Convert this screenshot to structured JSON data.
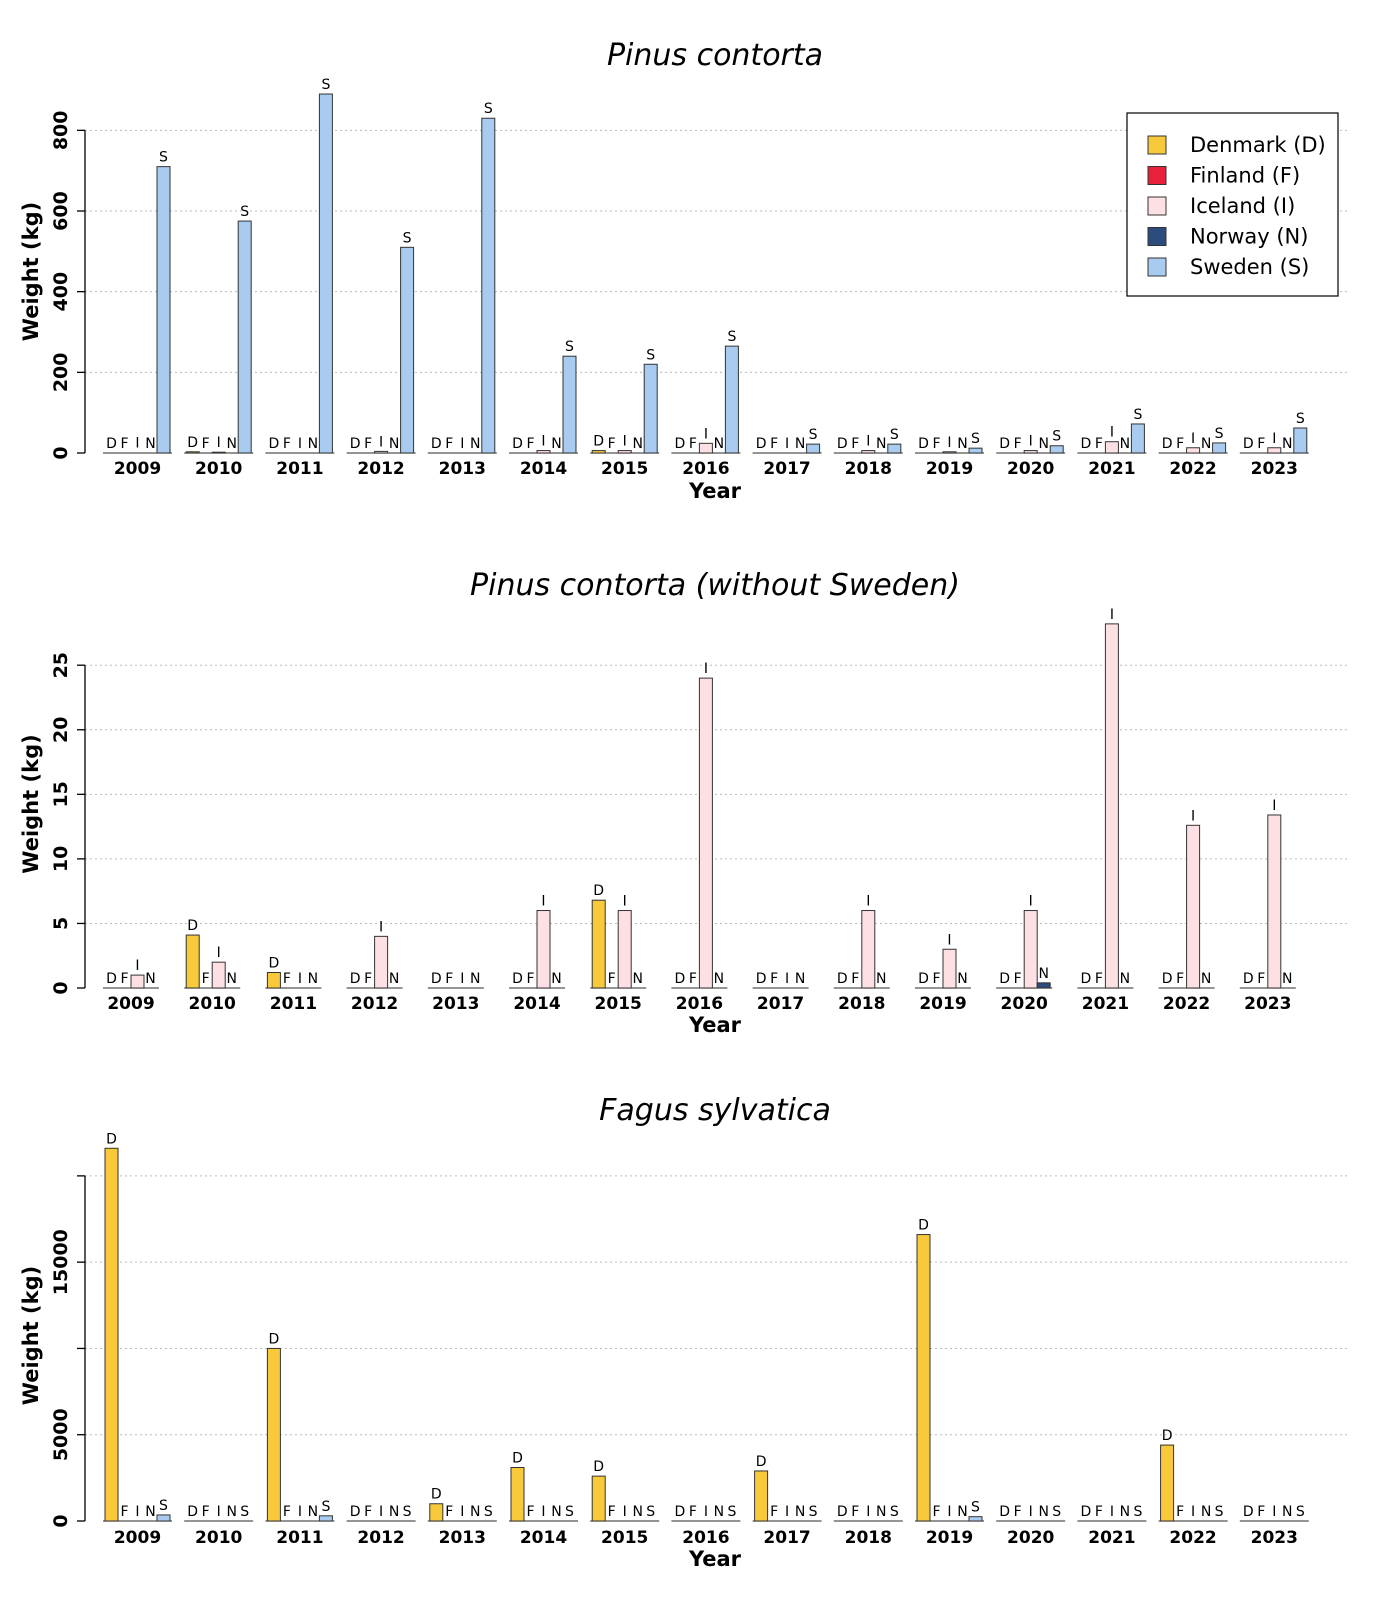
{
  "legend": {
    "placement": "top-right",
    "entries": [
      {
        "key": "D",
        "label": "Denmark (D)",
        "color": "#F7C93B"
      },
      {
        "key": "F",
        "label": "Finland (F)",
        "color": "#E8203A"
      },
      {
        "key": "I",
        "label": "Iceland (I)",
        "color": "#FDE0E3"
      },
      {
        "key": "N",
        "label": "Norway (N)",
        "color": "#2C4C7E"
      },
      {
        "key": "S",
        "label": "Sweden (S)",
        "color": "#A8CBEF"
      }
    ]
  },
  "chart_data": [
    {
      "type": "bar",
      "title": "Pinus contorta",
      "xlabel": "Year",
      "ylabel": "Weight (kg)",
      "ylim": [
        0,
        900
      ],
      "yticks": [
        0,
        200,
        400,
        600,
        800
      ],
      "grid": true,
      "categories": [
        "2009",
        "2010",
        "2011",
        "2012",
        "2013",
        "2014",
        "2015",
        "2016",
        "2017",
        "2018",
        "2019",
        "2020",
        "2021",
        "2022",
        "2023"
      ],
      "series": [
        {
          "key": "D",
          "name": "Denmark (D)",
          "values": [
            0,
            3,
            0,
            0,
            0,
            0,
            6,
            0,
            0,
            0,
            0,
            0,
            0,
            0,
            0
          ]
        },
        {
          "key": "F",
          "name": "Finland (F)",
          "values": [
            0,
            0,
            0,
            0,
            0,
            0,
            0,
            0,
            0,
            0,
            0,
            0,
            0,
            0,
            0
          ]
        },
        {
          "key": "I",
          "name": "Iceland (I)",
          "values": [
            1,
            2,
            0,
            4,
            0,
            6,
            6,
            24,
            0,
            6,
            3,
            6,
            28,
            13,
            13
          ]
        },
        {
          "key": "N",
          "name": "Norway (N)",
          "values": [
            0,
            0,
            0,
            0,
            0,
            0,
            0,
            0,
            0,
            0,
            0.4,
            0.4,
            0,
            0,
            0
          ]
        },
        {
          "key": "S",
          "name": "Sweden (S)",
          "values": [
            710,
            575,
            890,
            510,
            830,
            240,
            220,
            265,
            22,
            22,
            12,
            18,
            72,
            25,
            62
          ]
        }
      ]
    },
    {
      "type": "bar",
      "title": "Pinus contorta (without Sweden)",
      "xlabel": "Year",
      "ylabel": "Weight (kg)",
      "ylim": [
        0,
        28.5
      ],
      "yticks": [
        0,
        5,
        10,
        15,
        20,
        25
      ],
      "grid": true,
      "categories": [
        "2009",
        "2010",
        "2011",
        "2012",
        "2013",
        "2014",
        "2015",
        "2016",
        "2017",
        "2018",
        "2019",
        "2020",
        "2021",
        "2022",
        "2023"
      ],
      "series": [
        {
          "key": "D",
          "name": "Denmark (D)",
          "values": [
            0,
            4.1,
            1.2,
            0,
            0,
            0,
            6.8,
            0,
            0,
            0,
            0,
            0,
            0,
            0,
            0
          ]
        },
        {
          "key": "F",
          "name": "Finland (F)",
          "values": [
            0,
            0,
            0,
            0,
            0,
            0,
            0,
            0,
            0,
            0,
            0,
            0,
            0,
            0,
            0
          ]
        },
        {
          "key": "I",
          "name": "Iceland (I)",
          "values": [
            1,
            2,
            0,
            4,
            0,
            6,
            6,
            24,
            0,
            6,
            3,
            6,
            28.2,
            12.6,
            13.4
          ]
        },
        {
          "key": "N",
          "name": "Norway (N)",
          "values": [
            0,
            0,
            0,
            0,
            0,
            0,
            0,
            0,
            0,
            0,
            0,
            0.4,
            0,
            0,
            0
          ]
        }
      ]
    },
    {
      "type": "bar",
      "title": "Fagus sylvatica",
      "xlabel": "Year",
      "ylabel": "Weight (kg)",
      "ylim": [
        0,
        21500
      ],
      "yticks": [
        0,
        5000,
        15000
      ],
      "minor_ticks": [
        10000,
        20000
      ],
      "grid": true,
      "categories": [
        "2009",
        "2010",
        "2011",
        "2012",
        "2013",
        "2014",
        "2015",
        "2016",
        "2017",
        "2018",
        "2019",
        "2020",
        "2021",
        "2022",
        "2023"
      ],
      "series": [
        {
          "key": "D",
          "name": "Denmark (D)",
          "values": [
            21600,
            0,
            10000,
            0,
            1000,
            3100,
            2600,
            0,
            2900,
            0,
            16600,
            0,
            0,
            4400,
            0
          ]
        },
        {
          "key": "F",
          "name": "Finland (F)",
          "values": [
            0,
            0,
            0,
            0,
            0,
            0,
            0,
            0,
            0,
            0,
            0,
            0,
            0,
            0,
            0
          ]
        },
        {
          "key": "I",
          "name": "Iceland (I)",
          "values": [
            0,
            0,
            0,
            0,
            0,
            0,
            0,
            0,
            0,
            0,
            0,
            0,
            0,
            0,
            0
          ]
        },
        {
          "key": "N",
          "name": "Norway (N)",
          "values": [
            0,
            0,
            0,
            0,
            0,
            0,
            0,
            0,
            0,
            0,
            0,
            0,
            0,
            0,
            0
          ]
        },
        {
          "key": "S",
          "name": "Sweden (S)",
          "values": [
            350,
            0,
            300,
            0,
            0,
            0,
            0,
            0,
            0,
            0,
            250,
            0,
            0,
            0,
            0
          ]
        }
      ]
    }
  ]
}
